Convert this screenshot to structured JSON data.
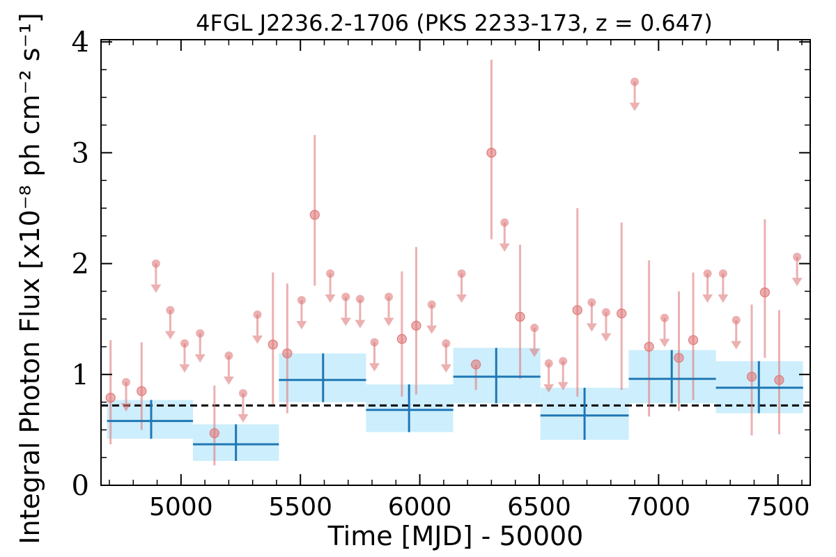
{
  "chart_data": {
    "type": "scatter",
    "title": "4FGL J2236.2-1706 (PKS 2233-173, z = 0.647)",
    "xlabel": "Time [MJD] - 50000",
    "ylabel": "Integral Photon Flux [x10⁻⁸ ph cm⁻² s⁻¹]",
    "xlim": [
      4665,
      7635
    ],
    "ylim": [
      0,
      4.02
    ],
    "x_ticks": [
      5000,
      5500,
      6000,
      6500,
      7000,
      7500
    ],
    "x_tick_labels": [
      "5000",
      "5500",
      "6000",
      "6500",
      "7000",
      "7500"
    ],
    "y_ticks": [
      0,
      1,
      2,
      3,
      4
    ],
    "y_tick_labels": [
      "0",
      "1",
      "2",
      "3",
      "4"
    ],
    "grid": false,
    "reference_line": {
      "y": 0.72,
      "style": "dashed",
      "color": "#000000"
    },
    "colors": {
      "points": "#e07b7b",
      "bins_line": "#1f77b4",
      "bins_band": "#cdeefc"
    },
    "series": [
      {
        "kind": "detections",
        "points": [
          {
            "x": 4705,
            "y": 0.79,
            "ylo": 0.37,
            "yhi": 1.31
          },
          {
            "x": 4835,
            "y": 0.85,
            "ylo": 0.5,
            "yhi": 1.29
          },
          {
            "x": 5140,
            "y": 0.47,
            "ylo": 0.18,
            "yhi": 0.9
          },
          {
            "x": 5385,
            "y": 1.27,
            "ylo": 0.73,
            "yhi": 1.92
          },
          {
            "x": 5445,
            "y": 1.19,
            "ylo": 0.65,
            "yhi": 1.82
          },
          {
            "x": 5560,
            "y": 2.44,
            "ylo": 1.8,
            "yhi": 3.16
          },
          {
            "x": 5925,
            "y": 1.32,
            "ylo": 0.8,
            "yhi": 1.93
          },
          {
            "x": 5985,
            "y": 1.44,
            "ylo": 0.82,
            "yhi": 2.15
          },
          {
            "x": 6235,
            "y": 1.09,
            "ylo": 0.86,
            "yhi": 1.09
          },
          {
            "x": 6300,
            "y": 3.0,
            "ylo": 2.22,
            "yhi": 3.84
          },
          {
            "x": 6420,
            "y": 1.52,
            "ylo": 0.96,
            "yhi": 2.17
          },
          {
            "x": 6660,
            "y": 1.58,
            "ylo": 0.8,
            "yhi": 2.5
          },
          {
            "x": 6845,
            "y": 1.55,
            "ylo": 0.86,
            "yhi": 2.37
          },
          {
            "x": 6960,
            "y": 1.25,
            "ylo": 0.62,
            "yhi": 2.03
          },
          {
            "x": 7085,
            "y": 1.15,
            "ylo": 0.67,
            "yhi": 1.75
          },
          {
            "x": 7145,
            "y": 1.31,
            "ylo": 0.77,
            "yhi": 1.92
          },
          {
            "x": 7390,
            "y": 0.98,
            "ylo": 0.45,
            "yhi": 1.63
          },
          {
            "x": 7445,
            "y": 1.74,
            "ylo": 1.15,
            "yhi": 2.4
          },
          {
            "x": 7505,
            "y": 0.95,
            "ylo": 0.46,
            "yhi": 1.58
          }
        ]
      },
      {
        "kind": "upper_limits",
        "points": [
          {
            "x": 4770,
            "y": 0.93
          },
          {
            "x": 4895,
            "y": 2.0
          },
          {
            "x": 4955,
            "y": 1.58
          },
          {
            "x": 5015,
            "y": 1.28
          },
          {
            "x": 5080,
            "y": 1.37
          },
          {
            "x": 5200,
            "y": 1.17
          },
          {
            "x": 5260,
            "y": 0.83
          },
          {
            "x": 5320,
            "y": 1.54
          },
          {
            "x": 5505,
            "y": 1.67
          },
          {
            "x": 5625,
            "y": 1.91
          },
          {
            "x": 5690,
            "y": 1.7
          },
          {
            "x": 5750,
            "y": 1.68
          },
          {
            "x": 5810,
            "y": 1.29
          },
          {
            "x": 5870,
            "y": 1.7
          },
          {
            "x": 6050,
            "y": 1.63
          },
          {
            "x": 6110,
            "y": 1.28
          },
          {
            "x": 6175,
            "y": 1.91
          },
          {
            "x": 6355,
            "y": 2.37
          },
          {
            "x": 6480,
            "y": 1.42
          },
          {
            "x": 6540,
            "y": 1.1
          },
          {
            "x": 6600,
            "y": 1.12
          },
          {
            "x": 6720,
            "y": 1.65
          },
          {
            "x": 6780,
            "y": 1.56
          },
          {
            "x": 6900,
            "y": 3.64
          },
          {
            "x": 7025,
            "y": 1.51
          },
          {
            "x": 7205,
            "y": 1.91
          },
          {
            "x": 7270,
            "y": 1.91
          },
          {
            "x": 7325,
            "y": 1.49
          },
          {
            "x": 7580,
            "y": 2.06
          }
        ]
      },
      {
        "kind": "binned",
        "bins": [
          {
            "x0": 4690,
            "x1": 5050,
            "xc": 4875,
            "y": 0.58,
            "ylo": 0.42,
            "yhi": 0.77
          },
          {
            "x0": 5050,
            "x1": 5410,
            "xc": 5230,
            "y": 0.37,
            "ylo": 0.22,
            "yhi": 0.55
          },
          {
            "x0": 5410,
            "x1": 5775,
            "xc": 5595,
            "y": 0.95,
            "ylo": 0.75,
            "yhi": 1.19
          },
          {
            "x0": 5775,
            "x1": 6140,
            "xc": 5955,
            "y": 0.68,
            "ylo": 0.48,
            "yhi": 0.91
          },
          {
            "x0": 6140,
            "x1": 6505,
            "xc": 6320,
            "y": 0.98,
            "ylo": 0.74,
            "yhi": 1.24
          },
          {
            "x0": 6505,
            "x1": 6875,
            "xc": 6690,
            "y": 0.63,
            "ylo": 0.41,
            "yhi": 0.88
          },
          {
            "x0": 6875,
            "x1": 7240,
            "xc": 7055,
            "y": 0.96,
            "ylo": 0.74,
            "yhi": 1.22
          },
          {
            "x0": 7240,
            "x1": 7605,
            "xc": 7420,
            "y": 0.88,
            "ylo": 0.65,
            "yhi": 1.12
          }
        ]
      }
    ]
  }
}
